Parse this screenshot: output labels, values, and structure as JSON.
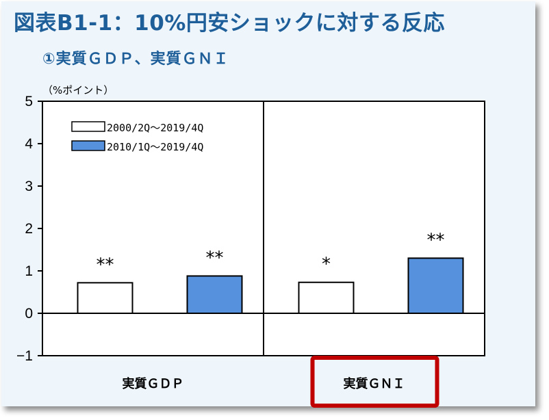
{
  "title": "図表B1-1：10%円安ショックに対する反応",
  "subtitle": "①実質ＧＤＰ、実質ＧＮＩ",
  "colors": {
    "title": "#1f5f99",
    "frame_bg": "#eef5fb",
    "series_blue": "#5591dc",
    "highlight": "#c00000"
  },
  "chart_data": {
    "type": "bar",
    "unit_label": "（%ポイント）",
    "ylim": [
      -1,
      5
    ],
    "yticks": [
      "−1",
      "0",
      "1",
      "2",
      "3",
      "4",
      "5"
    ],
    "ytick_values": [
      -1,
      0,
      1,
      2,
      3,
      4,
      5
    ],
    "categories": [
      "実質ＧＤＰ",
      "実質ＧＮＩ"
    ],
    "series": [
      {
        "name": "2000/2Q～2019/4Q",
        "values": [
          0.72,
          0.73
        ],
        "color": "#ffffff",
        "significance": [
          "**",
          "*"
        ]
      },
      {
        "name": "2010/1Q～2019/4Q",
        "values": [
          0.88,
          1.3
        ],
        "color": "#5591dc",
        "significance": [
          "**",
          "**"
        ]
      }
    ],
    "legend_position": "top-left",
    "grid": false,
    "highlighted_category": "実質ＧＮＩ"
  }
}
